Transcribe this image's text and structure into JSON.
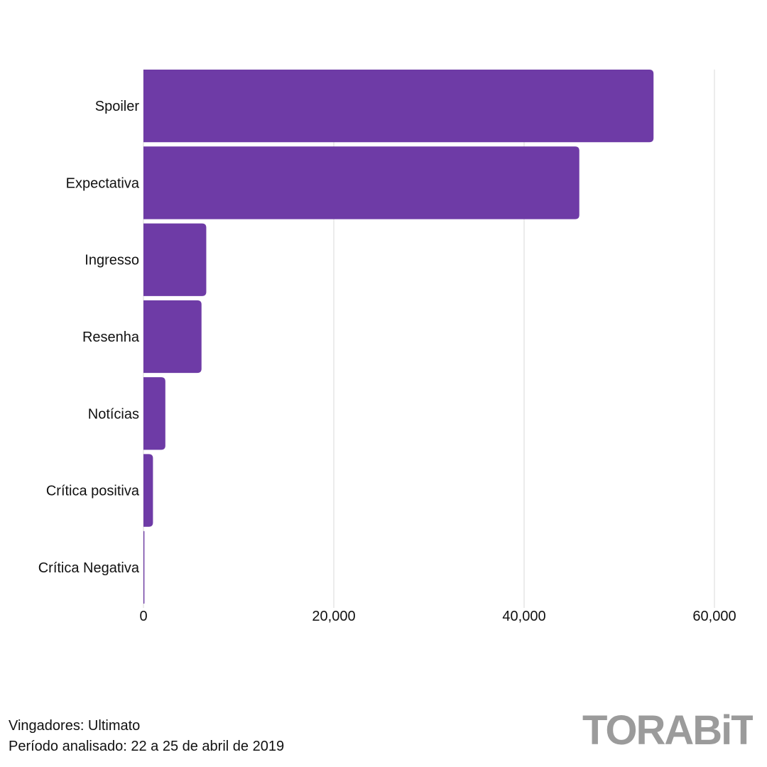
{
  "chart_data": {
    "type": "bar",
    "orientation": "horizontal",
    "categories": [
      "Spoiler",
      "Expectativa",
      "Ingresso",
      "Resenha",
      "Notícias",
      "Crítica positiva",
      "Crítica Negativa"
    ],
    "values": [
      53600,
      45800,
      6600,
      6100,
      2300,
      1000,
      100
    ],
    "xlim": [
      0,
      60000
    ],
    "xticks": [
      0,
      20000,
      40000,
      60000
    ],
    "xtick_labels": [
      "0",
      "20,000",
      "40,000",
      "60,000"
    ],
    "grid": "vertical",
    "bar_color": "#6e3ba6",
    "grid_color": "#d9d9d9",
    "title": "",
    "xlabel": "",
    "ylabel": ""
  },
  "footer": {
    "line1": "Vingadores: Ultimato",
    "line2": "Período analisado: 22 a 25 de abril de 2019"
  },
  "logo": {
    "text": "TORABiT",
    "color": "#9b9b9b"
  }
}
